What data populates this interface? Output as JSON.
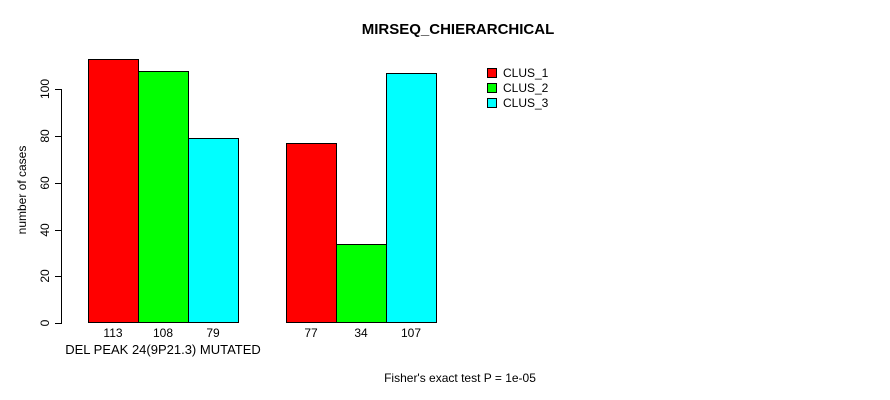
{
  "title": "MIRSEQ_CHIERARCHICAL",
  "footer": {
    "stat_text": "Fisher's exact test P = 1e-05"
  },
  "chart_data": {
    "type": "bar",
    "title": "MIRSEQ_CHIERARCHICAL",
    "xlabel": "",
    "ylabel": "number of cases",
    "categories": [
      "DEL PEAK 24(9P21.3) MUTATED",
      ""
    ],
    "series": [
      {
        "name": "CLUS_1",
        "color": "#ff0000",
        "values": [
          113,
          77
        ]
      },
      {
        "name": "CLUS_2",
        "color": "#00ff00",
        "values": [
          108,
          34
        ]
      },
      {
        "name": "CLUS_3",
        "color": "#00ffff",
        "values": [
          79,
          107
        ]
      }
    ],
    "bar_value_labels": [
      [
        113,
        108,
        79
      ],
      [
        77,
        34,
        107
      ]
    ],
    "yticks": [
      0,
      20,
      40,
      60,
      80,
      100
    ],
    "ylim": [
      0,
      113
    ],
    "grid": false,
    "legend_position": "top-right",
    "bar_border_color": "#000000",
    "annotation": "Fisher's exact test P = 1e-05"
  }
}
